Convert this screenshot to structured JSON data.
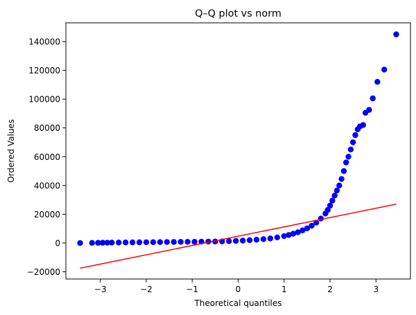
{
  "chart_data": {
    "type": "scatter",
    "title": "Q–Q plot vs norm",
    "xlabel": "Theoretical quantiles",
    "ylabel": "Ordered Values",
    "xlim": [
      -3.75,
      3.75
    ],
    "ylim": [
      -25000,
      153000
    ],
    "xticks": [
      -3,
      -2,
      -1,
      0,
      1,
      2,
      3
    ],
    "xtick_labels": [
      "−3",
      "−2",
      "−1",
      "0",
      "1",
      "2",
      "3"
    ],
    "yticks": [
      -20000,
      0,
      20000,
      40000,
      60000,
      80000,
      100000,
      120000,
      140000
    ],
    "ytick_labels": [
      "−20000",
      "0",
      "20000",
      "40000",
      "60000",
      "80000",
      "100000",
      "120000",
      "140000"
    ],
    "grid": false,
    "series": [
      {
        "color": "#0000ff",
        "marker": "circle",
        "points": [
          [
            -3.44,
            0
          ],
          [
            -3.18,
            100
          ],
          [
            -3.05,
            150
          ],
          [
            -2.95,
            200
          ],
          [
            -2.85,
            250
          ],
          [
            -2.75,
            300
          ],
          [
            -2.6,
            350
          ],
          [
            -2.45,
            400
          ],
          [
            -2.3,
            450
          ],
          [
            -2.15,
            500
          ],
          [
            -2.0,
            550
          ],
          [
            -1.85,
            600
          ],
          [
            -1.7,
            650
          ],
          [
            -1.55,
            700
          ],
          [
            -1.4,
            750
          ],
          [
            -1.25,
            800
          ],
          [
            -1.1,
            850
          ],
          [
            -0.95,
            900
          ],
          [
            -0.8,
            950
          ],
          [
            -0.65,
            1000
          ],
          [
            -0.5,
            1050
          ],
          [
            -0.35,
            1150
          ],
          [
            -0.2,
            1300
          ],
          [
            -0.05,
            1500
          ],
          [
            0.1,
            1700
          ],
          [
            0.25,
            2000
          ],
          [
            0.4,
            2300
          ],
          [
            0.55,
            2700
          ],
          [
            0.7,
            3200
          ],
          [
            0.85,
            3900
          ],
          [
            1.0,
            4800
          ],
          [
            1.1,
            5600
          ],
          [
            1.2,
            6500
          ],
          [
            1.3,
            7500
          ],
          [
            1.4,
            8800
          ],
          [
            1.5,
            10200
          ],
          [
            1.6,
            12000
          ],
          [
            1.7,
            14200
          ],
          [
            1.8,
            17000
          ],
          [
            1.9,
            20500
          ],
          [
            1.95,
            23000
          ],
          [
            2.0,
            26000
          ],
          [
            2.05,
            29500
          ],
          [
            2.1,
            33000
          ],
          [
            2.15,
            36500
          ],
          [
            2.2,
            40000
          ],
          [
            2.25,
            44500
          ],
          [
            2.3,
            50000
          ],
          [
            2.35,
            56000
          ],
          [
            2.4,
            60000
          ],
          [
            2.45,
            65000
          ],
          [
            2.5,
            70000
          ],
          [
            2.55,
            75000
          ],
          [
            2.6,
            79000
          ],
          [
            2.65,
            81000
          ],
          [
            2.72,
            82000
          ],
          [
            2.77,
            90500
          ],
          [
            2.85,
            92500
          ],
          [
            2.93,
            100500
          ],
          [
            3.03,
            112000
          ],
          [
            3.18,
            120500
          ],
          [
            3.44,
            145000
          ]
        ]
      },
      {
        "color": "#ff0000",
        "marker": "line",
        "points": [
          [
            -3.44,
            -17500
          ],
          [
            3.44,
            27000
          ]
        ]
      }
    ]
  }
}
